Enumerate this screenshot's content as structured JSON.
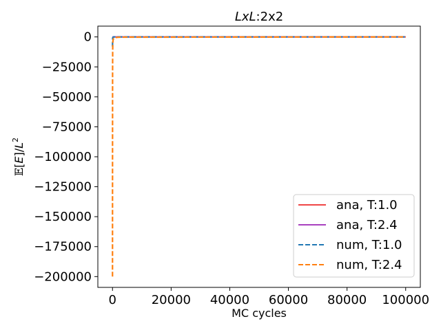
{
  "chart_data": {
    "type": "line",
    "title_parts": {
      "math": "LxL",
      "rest": ":2x2"
    },
    "xlabel": "MC cycles",
    "ylabel_parts": {
      "symbol": "𝔼",
      "bracket_open": "[",
      "var": "E",
      "bracket_close": "]",
      "slash": "/",
      "base": "L",
      "exp": "2"
    },
    "xlim": [
      -5000,
      105000
    ],
    "ylim": [
      -209000,
      9000
    ],
    "xticks": [
      0,
      20000,
      40000,
      60000,
      80000,
      100000
    ],
    "xtick_labels": [
      "0",
      "20000",
      "40000",
      "60000",
      "80000",
      "100000"
    ],
    "yticks": [
      0,
      -25000,
      -50000,
      -75000,
      -100000,
      -125000,
      -150000,
      -175000,
      -200000
    ],
    "ytick_labels": [
      "0",
      "−25000",
      "−50000",
      "−75000",
      "−100000",
      "−125000",
      "−150000",
      "−175000",
      "−200000"
    ],
    "legend_position": "lower right",
    "series": [
      {
        "name": "ana, T:1.0",
        "color": "#ef4444",
        "style": "solid",
        "x": [
          0,
          100000
        ],
        "y": [
          -2,
          -2
        ]
      },
      {
        "name": "ana, T:2.4",
        "color": "#a83fbf",
        "style": "solid",
        "x": [
          0,
          100000
        ],
        "y": [
          -1.4,
          -1.4
        ]
      },
      {
        "name": "num, T:1.0",
        "color": "#1f77b4",
        "style": "dashed",
        "x": [
          0,
          60,
          200,
          400,
          700,
          1000,
          2000,
          100000
        ],
        "y": [
          -8000,
          -800,
          -200,
          -50,
          -10,
          -3,
          -2,
          -2
        ]
      },
      {
        "name": "num, T:2.4",
        "color": "#ff7f0e",
        "style": "dashed",
        "x": [
          0,
          10,
          30,
          60,
          100,
          200,
          400,
          700,
          1000,
          2000,
          3000,
          100000
        ],
        "y": [
          -200000,
          -100000,
          -30000,
          -12000,
          -5000,
          -2500,
          -1200,
          -700,
          -500,
          -300,
          -200,
          -1.4
        ]
      }
    ]
  }
}
